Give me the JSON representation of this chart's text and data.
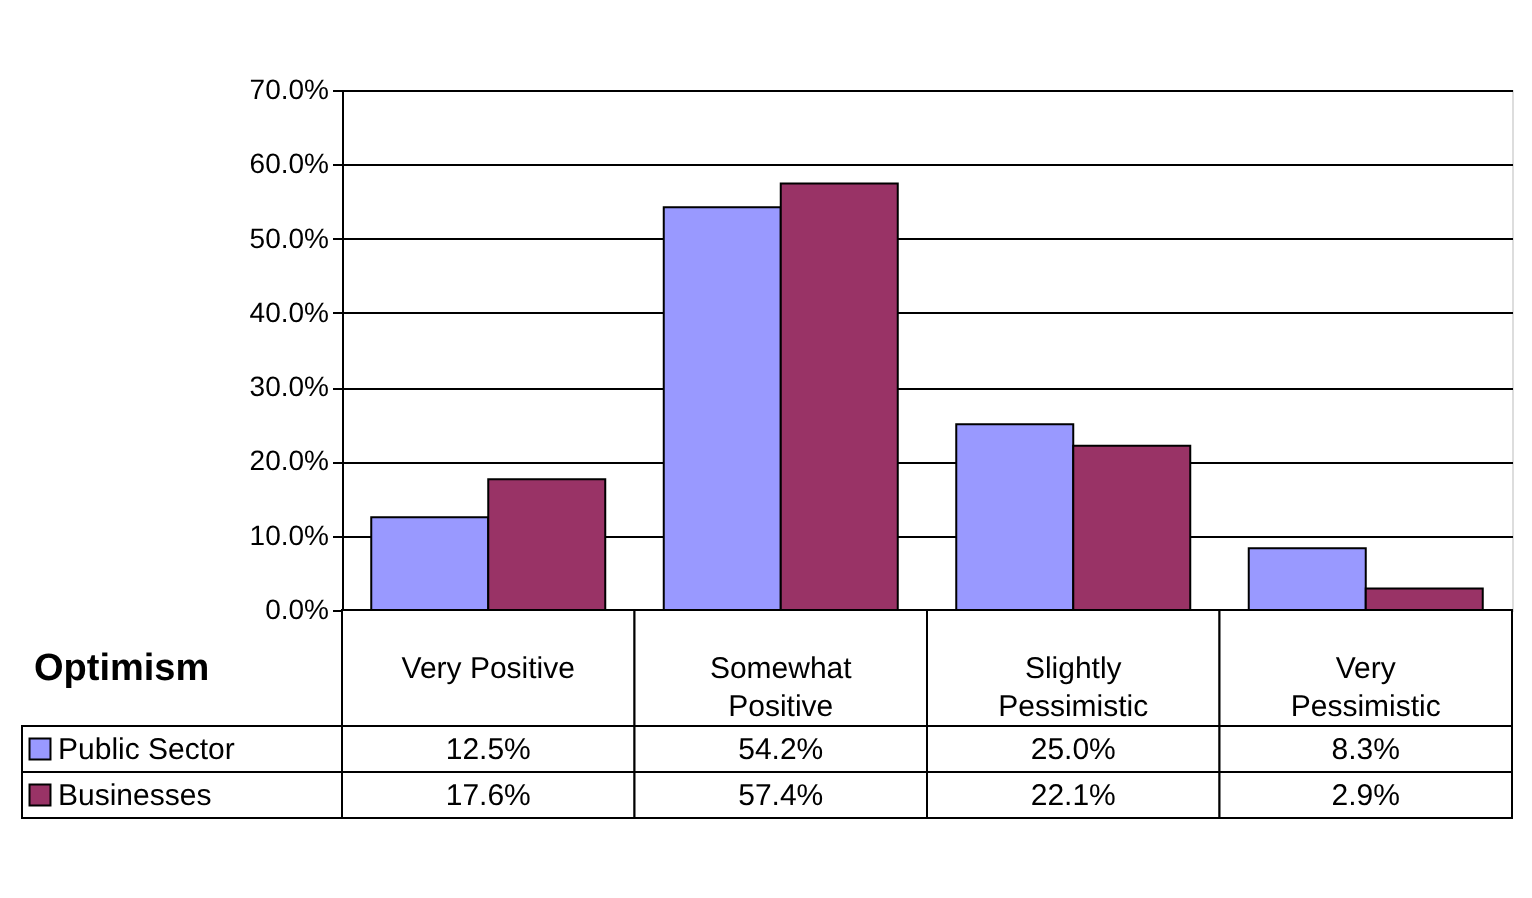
{
  "chart_data": {
    "type": "bar",
    "xlabel": "Optimism",
    "categories": [
      "Very Positive",
      "Somewhat Positive",
      "Slightly Pessimistic",
      "Very Pessimistic"
    ],
    "series": [
      {
        "name": "Public Sector",
        "color": "#9999ff",
        "values": [
          12.5,
          54.2,
          25.0,
          8.3
        ],
        "value_labels": [
          "12.5%",
          "54.2%",
          "25.0%",
          "8.3%"
        ]
      },
      {
        "name": "Businesses",
        "color": "#993366",
        "values": [
          17.6,
          57.4,
          22.1,
          2.9
        ],
        "value_labels": [
          "17.6%",
          "57.4%",
          "22.1%",
          "2.9%"
        ]
      }
    ],
    "ylim": [
      0,
      70
    ],
    "yticks": [
      {
        "value": 0,
        "label": "0.0%"
      },
      {
        "value": 10,
        "label": "10.0%"
      },
      {
        "value": 20,
        "label": "20.0%"
      },
      {
        "value": 30,
        "label": "30.0%"
      },
      {
        "value": 40,
        "label": "40.0%"
      },
      {
        "value": 50,
        "label": "50.0%"
      },
      {
        "value": 60,
        "label": "60.0%"
      },
      {
        "value": 70,
        "label": "70.0%"
      }
    ],
    "grid": "y",
    "legend": "bottom left"
  }
}
